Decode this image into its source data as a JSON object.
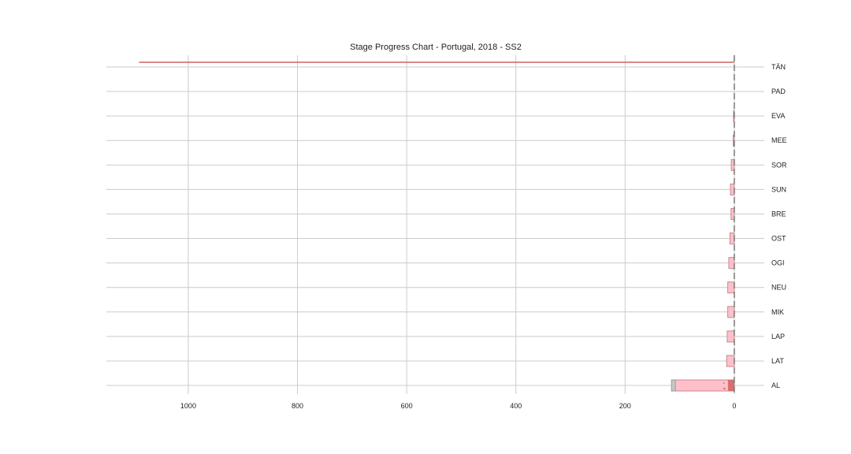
{
  "chart_data": {
    "type": "bar",
    "orientation": "horizontal",
    "x_axis_direction": "reversed",
    "title": "Stage Progress Chart - Portugal, 2018 - SS2",
    "xlabel": "",
    "ylabel": "",
    "xlim": [
      1150,
      -55
    ],
    "xticks": [
      1000,
      800,
      600,
      400,
      200,
      0
    ],
    "xtick_labels": [
      "1000",
      "800",
      "600",
      "400",
      "200",
      "0"
    ],
    "grid": true,
    "categories": [
      "TÄN",
      "PAD",
      "EVA",
      "MEE",
      "SOR",
      "SUN",
      "BRE",
      "OST",
      "OGI",
      "NEU",
      "MIK",
      "LAP",
      "LAT",
      "AL"
    ],
    "series": [
      {
        "values": [
          0,
          0,
          1.5,
          2,
          5.5,
          7,
          6,
          8,
          10,
          12,
          12,
          13,
          14,
          108
        ],
        "color": "#ffc0cb",
        "edge": "#c88890"
      },
      {
        "values": [
          0,
          0,
          0,
          0,
          0,
          0,
          0,
          0,
          0,
          0,
          0,
          0,
          0,
          7
        ],
        "color": "#c8c8c8",
        "edge": "#999999"
      },
      {
        "values": [
          1090,
          0,
          0,
          0,
          0,
          0,
          0,
          0,
          0,
          0,
          0,
          0,
          0,
          0
        ],
        "color": "#d06060",
        "style": "line"
      }
    ],
    "reference_line": {
      "x": 0,
      "style": "dashed",
      "color": "#777777"
    }
  }
}
